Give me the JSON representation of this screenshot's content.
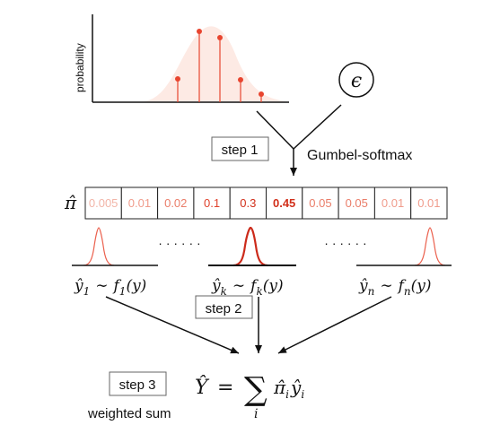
{
  "histogram": {
    "ylabel": "probability"
  },
  "epsilon": {
    "symbol": "ϵ"
  },
  "gumbel_label": "Gumbel-softmax",
  "steps": {
    "step1": "step 1",
    "step2": "step 2",
    "step3": "step 3"
  },
  "pi_label": "π̂",
  "pi_cells": [
    "0.005",
    "0.01",
    "0.02",
    "0.1",
    "0.3",
    "0.45",
    "0.05",
    "0.05",
    "0.01",
    "0.01"
  ],
  "dots": "· · · · · ·",
  "distributions": [
    {
      "y": "ŷ",
      "sub": "1",
      "sim": "∼",
      "f": "f",
      "arg": "(y)"
    },
    {
      "y": "ŷ",
      "sub": "k",
      "sim": "∼",
      "f": "f",
      "arg": "(y)"
    },
    {
      "y": "ŷ",
      "sub": "n",
      "sim": "∼",
      "f": "f",
      "arg": "(y)"
    }
  ],
  "result": {
    "lhs": "Ŷ",
    "eq": "=",
    "sum": "∑",
    "index": "i",
    "term_pi": "π̂",
    "term_y": "ŷ",
    "term_sub": "i"
  },
  "weighted_sum_label": "weighted sum",
  "colors": {
    "accent": "#e8452f",
    "light_fill": "#fde6df",
    "line": "#111111"
  }
}
